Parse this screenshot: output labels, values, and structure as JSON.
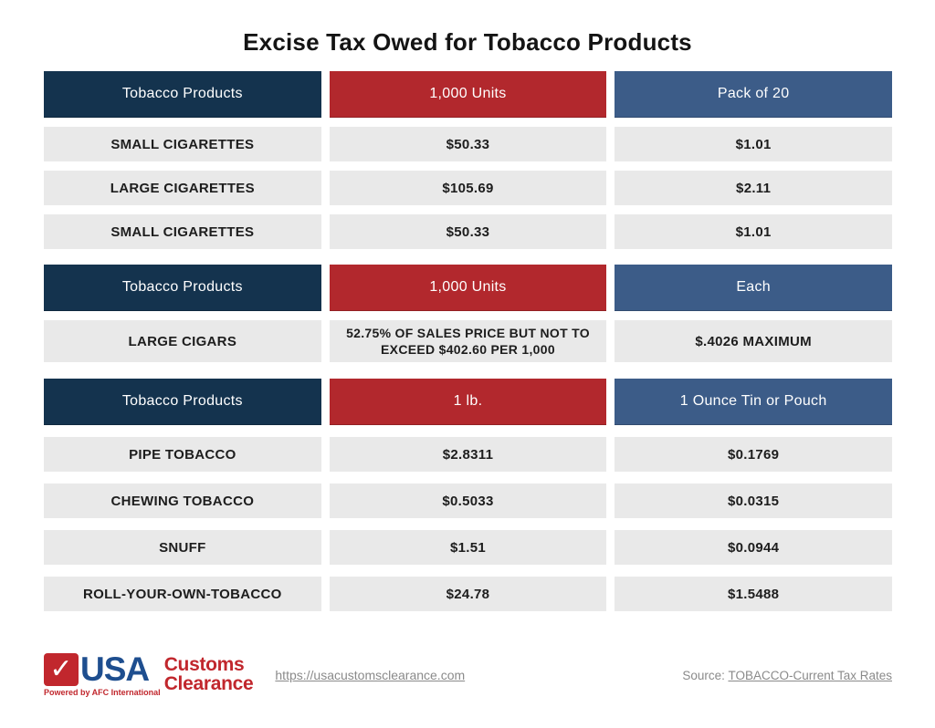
{
  "title": "Excise Tax Owed for Tobacco Products",
  "colors": {
    "header_navy": "#14334e",
    "header_red": "#b2282d",
    "header_blue": "#3c5c88",
    "row_bg": "#e9e9e9",
    "logo_red": "#c1272d",
    "logo_blue": "#1e4e8f",
    "footer_text": "#8a8a8a"
  },
  "chart_data": [
    {
      "type": "table",
      "columns": [
        "Tobacco Products",
        "1,000 Units",
        "Pack of 20"
      ],
      "rows": [
        [
          "SMALL CIGARETTES",
          "$50.33",
          "$1.01"
        ],
        [
          "LARGE CIGARETTES",
          "$105.69",
          "$2.11"
        ],
        [
          "SMALL CIGARETTES",
          "$50.33",
          "$1.01"
        ]
      ]
    },
    {
      "type": "table",
      "columns": [
        "Tobacco Products",
        "1,000 Units",
        "Each"
      ],
      "rows": [
        [
          "LARGE CIGARS",
          "52.75% OF SALES PRICE BUT NOT TO EXCEED $402.60 PER 1,000",
          "$.4026 MAXIMUM"
        ]
      ]
    },
    {
      "type": "table",
      "columns": [
        "Tobacco Products",
        "1 lb.",
        "1 Ounce Tin or Pouch"
      ],
      "rows": [
        [
          "PIPE TOBACCO",
          "$2.8311",
          "$0.1769"
        ],
        [
          "CHEWING TOBACCO",
          "$0.5033",
          "$0.0315"
        ],
        [
          "SNUFF",
          "$1.51",
          "$0.0944"
        ],
        [
          "ROLL-YOUR-OWN-TOBACCO",
          "$24.78",
          "$1.5488"
        ]
      ]
    }
  ],
  "footer": {
    "logo": {
      "check_glyph": "✓",
      "usa": "USA",
      "customs": "Customs",
      "clearance": "Clearance",
      "powered_by": "Powered by AFC International"
    },
    "site_link": "https://usacustomsclearance.com",
    "source_label": "Source: ",
    "source_link_text": "TOBACCO-Current Tax Rates"
  }
}
